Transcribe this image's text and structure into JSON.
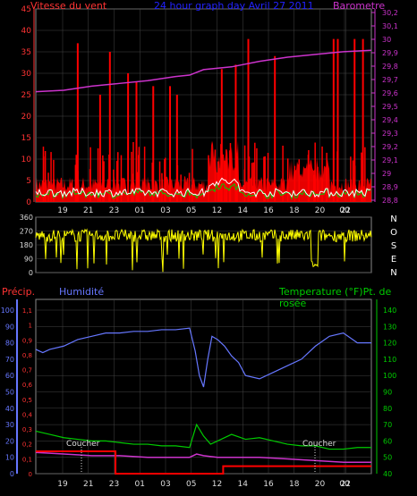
{
  "header": {
    "wind_label": "Vitesse du vent",
    "title": "24 hour graph day  Avril 27 2011",
    "baro_label": "Barometre"
  },
  "lower_header": {
    "precip_label": "Précip.",
    "humidity_label": "Humidité",
    "temp_label": "Temperature (°F)Pt. de rosée"
  },
  "annotations": {
    "sunset1": "Coucher",
    "sunset2": "Coucher"
  },
  "colors": {
    "wind": "#ff0000",
    "gust_area": "#ff0000",
    "wind_avg": "#ffffff",
    "wind_green": "#00cc00",
    "baro": "#cc33cc",
    "direction": "#ffff00",
    "humidity": "#6677ff",
    "temperature": "#00cc00",
    "dewpoint": "#cc33cc",
    "precip": "#ff0000",
    "grid": "#444444"
  },
  "chart_data": [
    {
      "type": "line",
      "name": "wind-barometer",
      "x_ticks": [
        "19",
        "21",
        "23",
        "01",
        "03",
        "05",
        "12",
        "14",
        "16",
        "18",
        "20",
        "22",
        "00"
      ],
      "left_axis": {
        "label": "Vitesse du vent",
        "ticks": [
          0,
          5,
          10,
          15,
          20,
          25,
          30,
          35,
          40,
          45
        ],
        "ylim": [
          0,
          45
        ]
      },
      "right_axis": {
        "label": "Barometre",
        "ticks": [
          "28,8",
          "28,9",
          "29",
          "29,1",
          "29,2",
          "29,3",
          "29,4",
          "29,5",
          "29,6",
          "29,7",
          "29,8",
          "29,9",
          "30",
          "30,1",
          "30,2"
        ],
        "ylim": [
          28.8,
          30.2
        ]
      },
      "barometer": {
        "x": [
          0,
          2,
          4,
          6,
          8,
          10,
          11,
          12,
          14,
          16,
          18,
          20,
          22,
          24
        ],
        "y": [
          29.6,
          29.61,
          29.64,
          29.66,
          29.68,
          29.71,
          29.72,
          29.76,
          29.78,
          29.82,
          29.85,
          29.87,
          29.89,
          29.9
        ]
      },
      "wind_spikes": {
        "x": [
          3,
          4.6,
          5.3,
          6.6,
          7.2,
          8.4,
          9.6,
          10.1,
          13.3,
          14.3,
          15.2,
          17.1,
          21.3,
          21.6,
          22.8,
          23.4
        ],
        "y": [
          37,
          25,
          35,
          30,
          28,
          27,
          27,
          25,
          31,
          32,
          38,
          34,
          38,
          38,
          38,
          38
        ]
      }
    },
    {
      "type": "line",
      "name": "wind-direction",
      "y_ticks": [
        0,
        90,
        180,
        270,
        360
      ],
      "ylim": [
        0,
        360
      ],
      "compass": [
        "N",
        "O",
        "S",
        "E",
        "N"
      ]
    },
    {
      "type": "line",
      "name": "humidity-temperature",
      "x_ticks": [
        "19",
        "21",
        "23",
        "01",
        "03",
        "05",
        "12",
        "14",
        "16",
        "18",
        "20",
        "22",
        "00"
      ],
      "precip_axis": {
        "ticks": [
          "0",
          "0,1",
          "0,2",
          "0,3",
          "0,4",
          "0,5",
          "0,6",
          "0,7",
          "0,8",
          "0,9",
          "1",
          "1,1"
        ],
        "ylim": [
          0,
          1.1
        ]
      },
      "humidity_axis": {
        "ticks": [
          0,
          10,
          20,
          30,
          40,
          50,
          60,
          70,
          80,
          90,
          100
        ],
        "ylim": [
          0,
          100
        ]
      },
      "temp_axis": {
        "ticks": [
          40,
          50,
          60,
          70,
          80,
          90,
          100,
          110,
          120,
          130,
          140
        ],
        "ylim": [
          40,
          140
        ]
      },
      "humidity": {
        "x": [
          0,
          0.5,
          1,
          2,
          3,
          4,
          5,
          6,
          7,
          8,
          9,
          10,
          11,
          11.4,
          11.7,
          12,
          12.3,
          12.6,
          13,
          13.5,
          14,
          14.5,
          15,
          16,
          17,
          18,
          19,
          20,
          21,
          22,
          23,
          24
        ],
        "y": [
          76,
          74,
          76,
          78,
          82,
          84,
          86,
          86,
          87,
          87,
          88,
          88,
          89,
          75,
          60,
          53,
          70,
          84,
          82,
          78,
          72,
          68,
          60,
          58,
          62,
          66,
          70,
          78,
          84,
          86,
          80,
          80
        ]
      },
      "temperature": {
        "x": [
          0,
          1,
          2,
          3,
          4,
          5,
          6,
          7,
          8,
          9,
          10,
          11,
          11.5,
          12,
          12.5,
          13,
          14,
          15,
          16,
          17,
          18,
          19,
          20,
          21,
          22,
          23,
          24
        ],
        "y": [
          66,
          64,
          62,
          61,
          60,
          60,
          59,
          58,
          58,
          57,
          57,
          56,
          70,
          63,
          58,
          60,
          64,
          61,
          62,
          60,
          58,
          57,
          57,
          55,
          55,
          56,
          56
        ]
      },
      "dewpoint": {
        "x": [
          0,
          2,
          4,
          6,
          8,
          10,
          11,
          11.5,
          12,
          13,
          14,
          16,
          18,
          20,
          22,
          24
        ],
        "y": [
          53,
          52,
          51,
          51,
          50,
          50,
          50,
          52,
          51,
          50,
          50,
          50,
          49,
          48,
          47,
          47
        ]
      },
      "precip": {
        "x": [
          0,
          5.7,
          5.7,
          13.4,
          13.4,
          24
        ],
        "y": [
          0.15,
          0.15,
          0,
          0,
          0.05,
          0.05
        ]
      }
    }
  ]
}
